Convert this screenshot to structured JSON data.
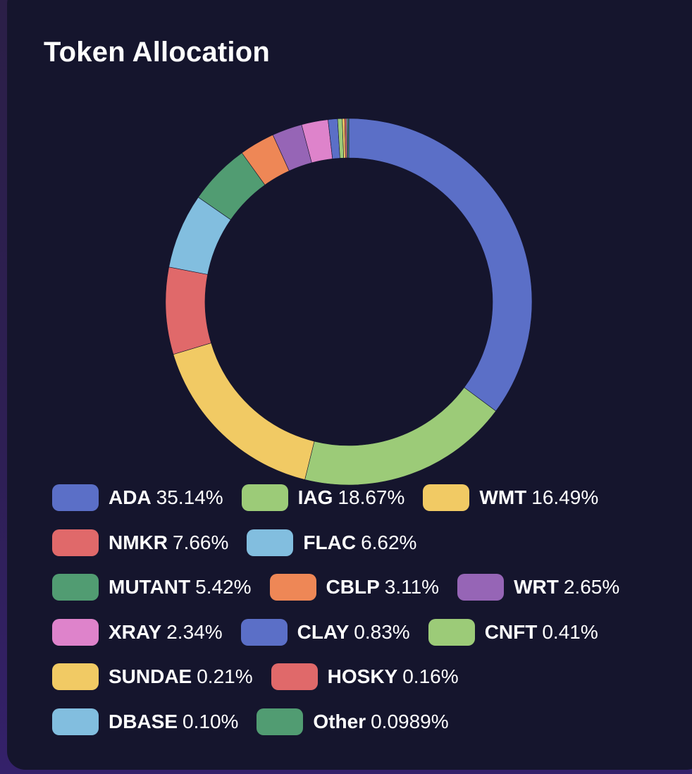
{
  "card": {
    "title": "Token Allocation"
  },
  "chart_data": {
    "type": "pie",
    "variant": "donut",
    "title": "Token Allocation",
    "legend_position": "bottom",
    "slices": [
      {
        "label": "ADA",
        "value": 35.14,
        "pct_label": "35.14%",
        "color": "#5b6fc7"
      },
      {
        "label": "IAG",
        "value": 18.67,
        "pct_label": "18.67%",
        "color": "#9ccb78"
      },
      {
        "label": "WMT",
        "value": 16.49,
        "pct_label": "16.49%",
        "color": "#f1ca64"
      },
      {
        "label": "NMKR",
        "value": 7.66,
        "pct_label": "7.66%",
        "color": "#e0696a"
      },
      {
        "label": "FLAC",
        "value": 6.62,
        "pct_label": "6.62%",
        "color": "#82bedf"
      },
      {
        "label": "MUTANT",
        "value": 5.42,
        "pct_label": "5.42%",
        "color": "#519c72"
      },
      {
        "label": "CBLP",
        "value": 3.11,
        "pct_label": "3.11%",
        "color": "#ee8756"
      },
      {
        "label": "WRT",
        "value": 2.65,
        "pct_label": "2.65%",
        "color": "#9665b6"
      },
      {
        "label": "XRAY",
        "value": 2.34,
        "pct_label": "2.34%",
        "color": "#de83cb"
      },
      {
        "label": "CLAY",
        "value": 0.83,
        "pct_label": "0.83%",
        "color": "#5b6fc7"
      },
      {
        "label": "CNFT",
        "value": 0.41,
        "pct_label": "0.41%",
        "color": "#9ccb78"
      },
      {
        "label": "SUNDAE",
        "value": 0.21,
        "pct_label": "0.21%",
        "color": "#f1ca64"
      },
      {
        "label": "HOSKY",
        "value": 0.16,
        "pct_label": "0.16%",
        "color": "#e0696a"
      },
      {
        "label": "DBASE",
        "value": 0.1,
        "pct_label": "0.10%",
        "color": "#82bedf"
      },
      {
        "label": "Other",
        "value": 0.0989,
        "pct_label": "0.0989%",
        "color": "#519c72"
      }
    ]
  }
}
